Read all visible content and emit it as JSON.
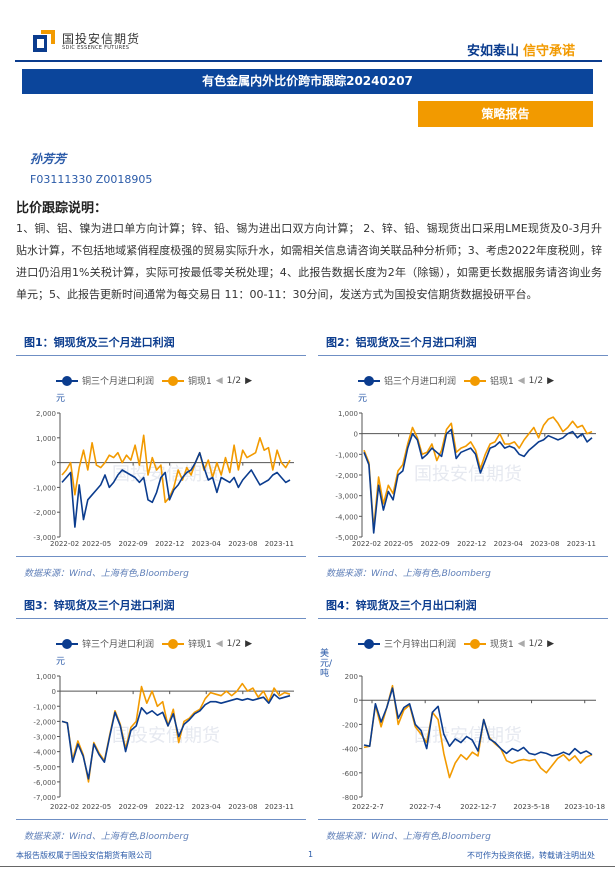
{
  "header": {
    "logo_cn": "国投安信期货",
    "logo_en": "SDIC ESSENCE FUTURES",
    "slogan_a": "安如泰山",
    "slogan_b": "信守承诺"
  },
  "report": {
    "title": "有色金属内外比价跨市跟踪20240207",
    "type": "策略报告",
    "author": "孙芳芳",
    "ids": "F03111330 Z0018905"
  },
  "description": {
    "heading": "比价跟踪说明：",
    "text": "1、铜、铝、镍为进口单方向计算；锌、铅、锡为进出口双方向计算； 2、锌、铅、锡现货出口采用LME现货及0-3月升贴水计算，不包括地域紧俏程度极强的贸易实际升水，如需相关信息请咨询关联品种分析师；3、考虑2022年度税则，锌进口仍沿用1%关税计算，实际可按最低零关税处理；4、此报告数据长度为2年（除锡），如需更长数据服务请咨询业务单元；5、此报告更新时间通常为每交易日 11：00-11：30分间，发送方式为国投安信期货数据投研平台。"
  },
  "colors": {
    "blue": "#0b3c8e",
    "orange": "#f29a00",
    "brand_blue": "#0b459b"
  },
  "chart_data": [
    {
      "type": "line",
      "title": "图1：铜现货及三个月进口利润",
      "unit": "元",
      "legend": [
        "铜三个月进口利润",
        "铜现1"
      ],
      "pager": "1/2",
      "source": "数据来源：Wind、上海有色,Bloomberg",
      "ylim": [
        -3000,
        2000
      ],
      "yticks": [
        "2,000",
        "1,000",
        "0",
        "-1,000",
        "-2,000",
        "-3,000"
      ],
      "yvalues": [
        2000,
        1000,
        0,
        -1000,
        -2000,
        -3000
      ],
      "xticks": [
        "2022-02",
        "2022-05",
        "2022-09",
        "2022-12",
        "2023-04",
        "2023-08",
        "2023-11"
      ],
      "series": [
        {
          "name": "铜三个月进口利润",
          "color": "#0b3c8e",
          "values": [
            -800,
            -600,
            -400,
            -2600,
            -900,
            -2300,
            -1500,
            -1300,
            -1100,
            -900,
            -500,
            -1000,
            -800,
            -500,
            -300,
            -400,
            -500,
            -600,
            -800,
            -600,
            -1500,
            -1600,
            -1200,
            -600,
            -400,
            -1500,
            -1100,
            -900,
            -600,
            -400,
            -300,
            0,
            400,
            -200,
            -700,
            -600,
            -1200,
            -600,
            -700,
            -800,
            -600,
            -1000,
            -700,
            -500,
            -300,
            -600,
            -900,
            -800,
            -700,
            -500,
            -400,
            -600,
            -800,
            -700
          ]
        },
        {
          "name": "铜现1",
          "color": "#f29a00",
          "values": [
            -500,
            -300,
            0,
            -1300,
            -200,
            500,
            -300,
            800,
            -100,
            -200,
            0,
            300,
            200,
            400,
            0,
            300,
            100,
            700,
            -100,
            1100,
            -500,
            200,
            -300,
            -100,
            -1600,
            -1400,
            -1000,
            -300,
            -700,
            -200,
            -500,
            0,
            400,
            -300,
            100,
            -600,
            0,
            -500,
            200,
            -400,
            700,
            -300,
            500,
            200,
            300,
            400,
            1000,
            500,
            600,
            -300,
            500,
            0,
            -200,
            100
          ]
        }
      ]
    },
    {
      "type": "line",
      "title": "图2：铝现货及三个月进口利润",
      "unit": "元",
      "legend": [
        "铝三个月进口利润",
        "铝现1"
      ],
      "pager": "1/2",
      "source": "数据来源：Wind、上海有色,Bloomberg",
      "ylim": [
        -5000,
        1000
      ],
      "yticks": [
        "1,000",
        "0",
        "-1,000",
        "-2,000",
        "-3,000",
        "-4,000",
        "-5,000"
      ],
      "yvalues": [
        1000,
        0,
        -1000,
        -2000,
        -3000,
        -4000,
        -5000
      ],
      "xticks": [
        "2022-02",
        "2022-05",
        "2022-09",
        "2022-12",
        "2023-04",
        "2023-08",
        "2023-11"
      ],
      "series": [
        {
          "name": "铝三个月进口利润",
          "color": "#0b3c8e",
          "values": [
            -900,
            -1500,
            -4800,
            -2500,
            -3700,
            -2800,
            -3200,
            -2000,
            -1800,
            -700,
            0,
            -300,
            -1200,
            -1000,
            -700,
            -900,
            -1100,
            0,
            200,
            -1200,
            -900,
            -800,
            -700,
            -1000,
            -1900,
            -1300,
            -700,
            -600,
            -400,
            -700,
            -600,
            -700,
            -1000,
            -1100,
            -800,
            -600,
            -400,
            -300,
            -100,
            -200,
            -300,
            -200,
            0,
            100,
            -200,
            0,
            -400,
            -200
          ]
        },
        {
          "name": "铝现1",
          "color": "#f29a00",
          "values": [
            -800,
            -1400,
            -4600,
            -2100,
            -3400,
            -2500,
            -2900,
            -1800,
            -1500,
            -500,
            300,
            -200,
            -1000,
            -900,
            -500,
            -1300,
            -800,
            200,
            500,
            -900,
            -700,
            -600,
            -400,
            -800,
            -1700,
            -1000,
            -500,
            -400,
            0,
            -500,
            -500,
            -400,
            -700,
            -300,
            0,
            300,
            -200,
            400,
            700,
            800,
            500,
            100,
            300,
            600,
            300,
            400,
            0,
            100
          ]
        }
      ]
    },
    {
      "type": "line",
      "title": "图3：锌现货及三个月进口利润",
      "unit": "元",
      "legend": [
        "锌三个月进口利润",
        "锌现1"
      ],
      "pager": "1/2",
      "source": "数据来源：Wind、上海有色,Bloomberg",
      "ylim": [
        -7000,
        1000
      ],
      "yticks": [
        "1,000",
        "0",
        "-1,000",
        "-2,000",
        "-3,000",
        "-4,000",
        "-5,000",
        "-6,000",
        "-7,000"
      ],
      "yvalues": [
        1000,
        0,
        -1000,
        -2000,
        -3000,
        -4000,
        -5000,
        -6000,
        -7000
      ],
      "xticks": [
        "2022-02",
        "2022-05",
        "2022-09",
        "2022-12",
        "2023-04",
        "2023-08",
        "2023-11"
      ],
      "series": [
        {
          "name": "锌三个月进口利润",
          "color": "#0b3c8e",
          "values": [
            -2000,
            -2100,
            -4700,
            -3500,
            -4300,
            -5800,
            -3500,
            -4200,
            -4700,
            -3000,
            -1400,
            -2300,
            -4000,
            -2600,
            -2300,
            -1100,
            -1500,
            -1300,
            -1600,
            -1400,
            -2300,
            -1500,
            -3000,
            -2200,
            -1900,
            -1500,
            -1300,
            -900,
            -700,
            -700,
            -800,
            -700,
            -600,
            -500,
            -600,
            -500,
            -600,
            -500,
            -400,
            -800,
            -200,
            -500,
            -400,
            -300
          ]
        },
        {
          "name": "锌现1",
          "color": "#f29a00",
          "values": [
            -2000,
            -2100,
            -4500,
            -3300,
            -4200,
            -6000,
            -3400,
            -4100,
            -4600,
            -2900,
            -1300,
            -2200,
            -3800,
            -2400,
            -2000,
            300,
            -800,
            0,
            -1000,
            -700,
            -2300,
            -1200,
            -3400,
            -2000,
            -1800,
            -1400,
            -1200,
            -500,
            -100,
            -200,
            -300,
            0,
            -300,
            0,
            500,
            0,
            200,
            -400,
            0,
            -700,
            200,
            -300,
            -100,
            -200
          ]
        }
      ]
    },
    {
      "type": "line",
      "title": "图4：锌现货及三个月出口利润",
      "unit": "美元/吨",
      "legend": [
        "三个月锌出口利润",
        "现货1"
      ],
      "pager": "1/2",
      "source": "数据来源：Wind、上海有色,Bloomberg",
      "ylim": [
        -800,
        200
      ],
      "yticks": [
        "200",
        "0",
        "-200",
        "-400",
        "-600",
        "-800"
      ],
      "yvalues": [
        200,
        0,
        -200,
        -400,
        -600,
        -800
      ],
      "xticks": [
        "2022-2-7",
        "2022-7-4",
        "2022-12-7",
        "2023-5-18",
        "2023-10-18"
      ],
      "series": [
        {
          "name": "三个月锌出口利润",
          "color": "#0b3c8e",
          "values": [
            -370,
            -380,
            -30,
            -180,
            -60,
            100,
            -150,
            -60,
            -30,
            -200,
            -250,
            -400,
            -100,
            -50,
            -280,
            -380,
            -320,
            -350,
            -300,
            -330,
            -420,
            -160,
            -320,
            -350,
            -400,
            -440,
            -400,
            -420,
            -390,
            -440,
            -450,
            -430,
            -440,
            -460,
            -450,
            -430,
            -450,
            -400,
            -440,
            -420,
            -450
          ]
        },
        {
          "name": "现货1",
          "color": "#f29a00",
          "values": [
            -390,
            -380,
            -40,
            -220,
            -60,
            120,
            -200,
            -80,
            -40,
            -220,
            -280,
            -350,
            -100,
            -160,
            -440,
            -640,
            -520,
            -450,
            -490,
            -430,
            -460,
            -160,
            -310,
            -360,
            -400,
            -500,
            -520,
            -500,
            -490,
            -500,
            -490,
            -560,
            -600,
            -540,
            -480,
            -450,
            -500,
            -460,
            -520,
            -470,
            -450
          ]
        }
      ]
    }
  ],
  "footer": {
    "left": "本报告版权属于国投安信期货有限公司",
    "page": "1",
    "right": "不可作为投资依据，转载请注明出处"
  }
}
